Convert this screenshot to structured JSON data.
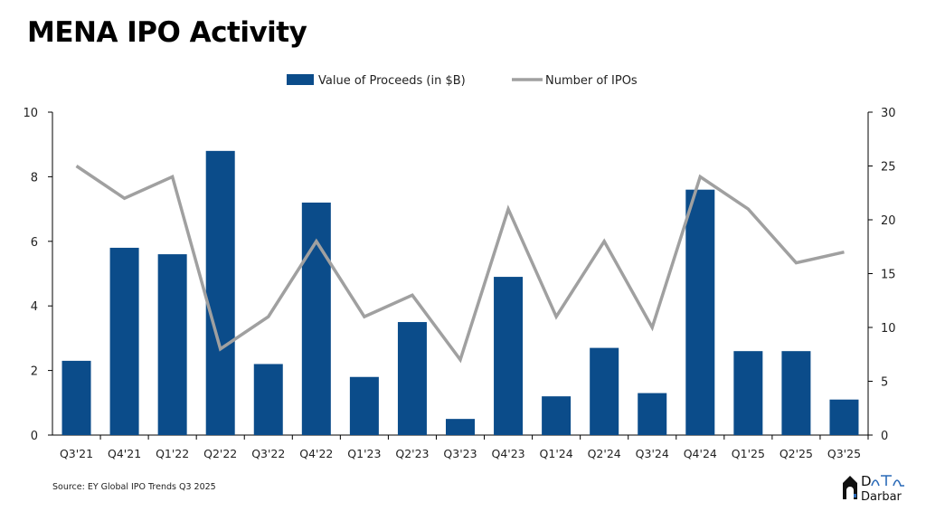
{
  "title": "MENA IPO Activity",
  "source": "Source: EY Global IPO Trends Q3 2025",
  "logo_text": "Data Darbar",
  "chart_data": {
    "type": "bar",
    "categories": [
      "Q3'21",
      "Q4'21",
      "Q1'22",
      "Q2'22",
      "Q3'22",
      "Q4'22",
      "Q1'23",
      "Q2'23",
      "Q3'23",
      "Q4'23",
      "Q1'24",
      "Q2'24",
      "Q3'24",
      "Q4'24",
      "Q1'25",
      "Q2'25",
      "Q3'25"
    ],
    "series": [
      {
        "name": "Value of Proceeds (in $B)",
        "type": "bar",
        "axis": "left",
        "color": "#0b4c8a",
        "values": [
          2.3,
          5.8,
          5.6,
          8.8,
          2.2,
          7.2,
          1.8,
          3.5,
          0.5,
          4.9,
          1.2,
          2.7,
          1.3,
          7.6,
          2.6,
          2.6,
          1.1
        ]
      },
      {
        "name": "Number of IPOs",
        "type": "line",
        "axis": "right",
        "color": "#a0a0a0",
        "values": [
          25,
          22,
          24,
          8,
          11,
          18,
          11,
          13,
          7,
          21,
          11,
          18,
          10,
          24,
          21,
          16,
          17
        ]
      }
    ],
    "ylim": [
      0,
      10
    ],
    "yticks": [
      0,
      2,
      4,
      6,
      8,
      10
    ],
    "y2lim": [
      0,
      30
    ],
    "y2ticks": [
      0,
      5,
      10,
      15,
      20,
      25,
      30
    ],
    "legend": "top-center",
    "grid": false
  }
}
